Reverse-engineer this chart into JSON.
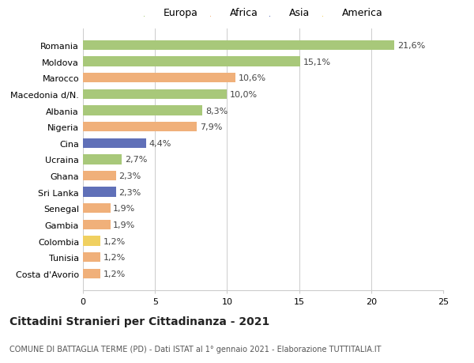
{
  "countries": [
    "Romania",
    "Moldova",
    "Marocco",
    "Macedonia d/N.",
    "Albania",
    "Nigeria",
    "Cina",
    "Ucraina",
    "Ghana",
    "Sri Lanka",
    "Senegal",
    "Gambia",
    "Colombia",
    "Tunisia",
    "Costa d'Avorio"
  ],
  "values": [
    21.6,
    15.1,
    10.6,
    10.0,
    8.3,
    7.9,
    4.4,
    2.7,
    2.3,
    2.3,
    1.9,
    1.9,
    1.2,
    1.2,
    1.2
  ],
  "labels": [
    "21,6%",
    "15,1%",
    "10,6%",
    "10,0%",
    "8,3%",
    "7,9%",
    "4,4%",
    "2,7%",
    "2,3%",
    "2,3%",
    "1,9%",
    "1,9%",
    "1,2%",
    "1,2%",
    "1,2%"
  ],
  "continents": [
    "Europa",
    "Europa",
    "Africa",
    "Europa",
    "Europa",
    "Africa",
    "Asia",
    "Europa",
    "Africa",
    "Asia",
    "Africa",
    "Africa",
    "America",
    "Africa",
    "Africa"
  ],
  "colors": {
    "Europa": "#a8c87a",
    "Africa": "#f0b07a",
    "Asia": "#6070b8",
    "America": "#f0d060"
  },
  "legend_order": [
    "Europa",
    "Africa",
    "Asia",
    "America"
  ],
  "xlim": [
    0,
    25
  ],
  "xticks": [
    0,
    5,
    10,
    15,
    20,
    25
  ],
  "title": "Cittadini Stranieri per Cittadinanza - 2021",
  "subtitle": "COMUNE DI BATTAGLIA TERME (PD) - Dati ISTAT al 1° gennaio 2021 - Elaborazione TUTTITALIA.IT",
  "bg_color": "#ffffff",
  "grid_color": "#cccccc",
  "bar_height": 0.6,
  "label_fontsize": 8,
  "title_fontsize": 10,
  "subtitle_fontsize": 7,
  "legend_fontsize": 9,
  "ytick_fontsize": 8
}
